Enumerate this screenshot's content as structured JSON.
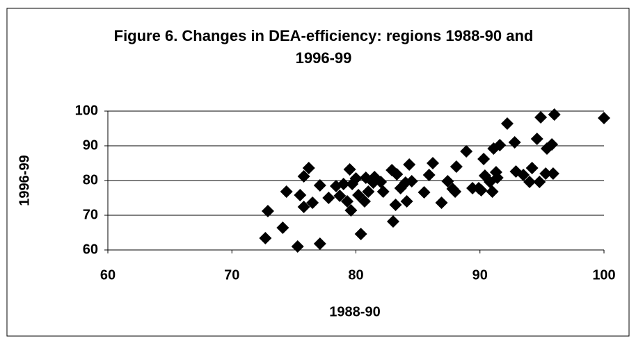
{
  "chart_data": {
    "type": "scatter",
    "title": "Figure 6. Changes in DEA-efficiency: regions 1988-90 and 1996-99",
    "x_label": "1988-90",
    "y_label": "1996-99",
    "xlim": [
      60,
      100
    ],
    "xticks": [
      60,
      70,
      80,
      90,
      100
    ],
    "ylim": [
      60,
      100
    ],
    "yticks": [
      60,
      70,
      80,
      90,
      100
    ],
    "grid": true,
    "color": "#000000",
    "x": [
      72.9,
      72.7,
      74.1,
      74.4,
      75.3,
      75.5,
      75.8,
      75.8,
      76.2,
      76.5,
      77.1,
      77.1,
      77.8,
      78.4,
      78.7,
      79.0,
      79.3,
      79.5,
      79.6,
      79.7,
      80.0,
      80.2,
      80.4,
      80.7,
      80.8,
      81.0,
      81.4,
      81.5,
      82.0,
      82.2,
      82.9,
      83.0,
      83.2,
      83.3,
      83.6,
      84.0,
      84.1,
      84.3,
      84.5,
      85.5,
      85.9,
      86.2,
      86.9,
      87.4,
      87.8,
      88.0,
      88.1,
      88.9,
      89.4,
      89.9,
      90.1,
      90.3,
      90.4,
      90.8,
      91.0,
      91.1,
      91.3,
      91.4,
      91.6,
      92.2,
      92.8,
      92.9,
      93.5,
      94.0,
      94.2,
      94.6,
      94.8,
      94.9,
      95.3,
      95.4,
      95.8,
      95.9,
      96.0,
      100.0
    ],
    "y": [
      71.2,
      63.4,
      66.4,
      76.8,
      61.0,
      75.8,
      81.2,
      72.4,
      83.6,
      73.6,
      78.6,
      61.8,
      75.0,
      78.4,
      75.6,
      79.0,
      74.0,
      83.2,
      71.4,
      79.0,
      80.6,
      75.8,
      64.6,
      74.0,
      80.8,
      76.8,
      79.4,
      81.0,
      79.6,
      76.8,
      83.0,
      68.2,
      73.0,
      81.8,
      77.8,
      79.4,
      74.0,
      84.6,
      79.8,
      76.6,
      81.6,
      85.0,
      73.6,
      79.8,
      77.6,
      76.8,
      84.0,
      88.4,
      77.8,
      77.8,
      77.2,
      86.2,
      81.4,
      79.6,
      76.8,
      89.2,
      82.4,
      80.8,
      90.2,
      96.4,
      91.0,
      82.6,
      81.6,
      79.6,
      83.6,
      92.0,
      79.6,
      98.2,
      82.0,
      89.2,
      90.4,
      82.0,
      99.0,
      98.0
    ]
  }
}
